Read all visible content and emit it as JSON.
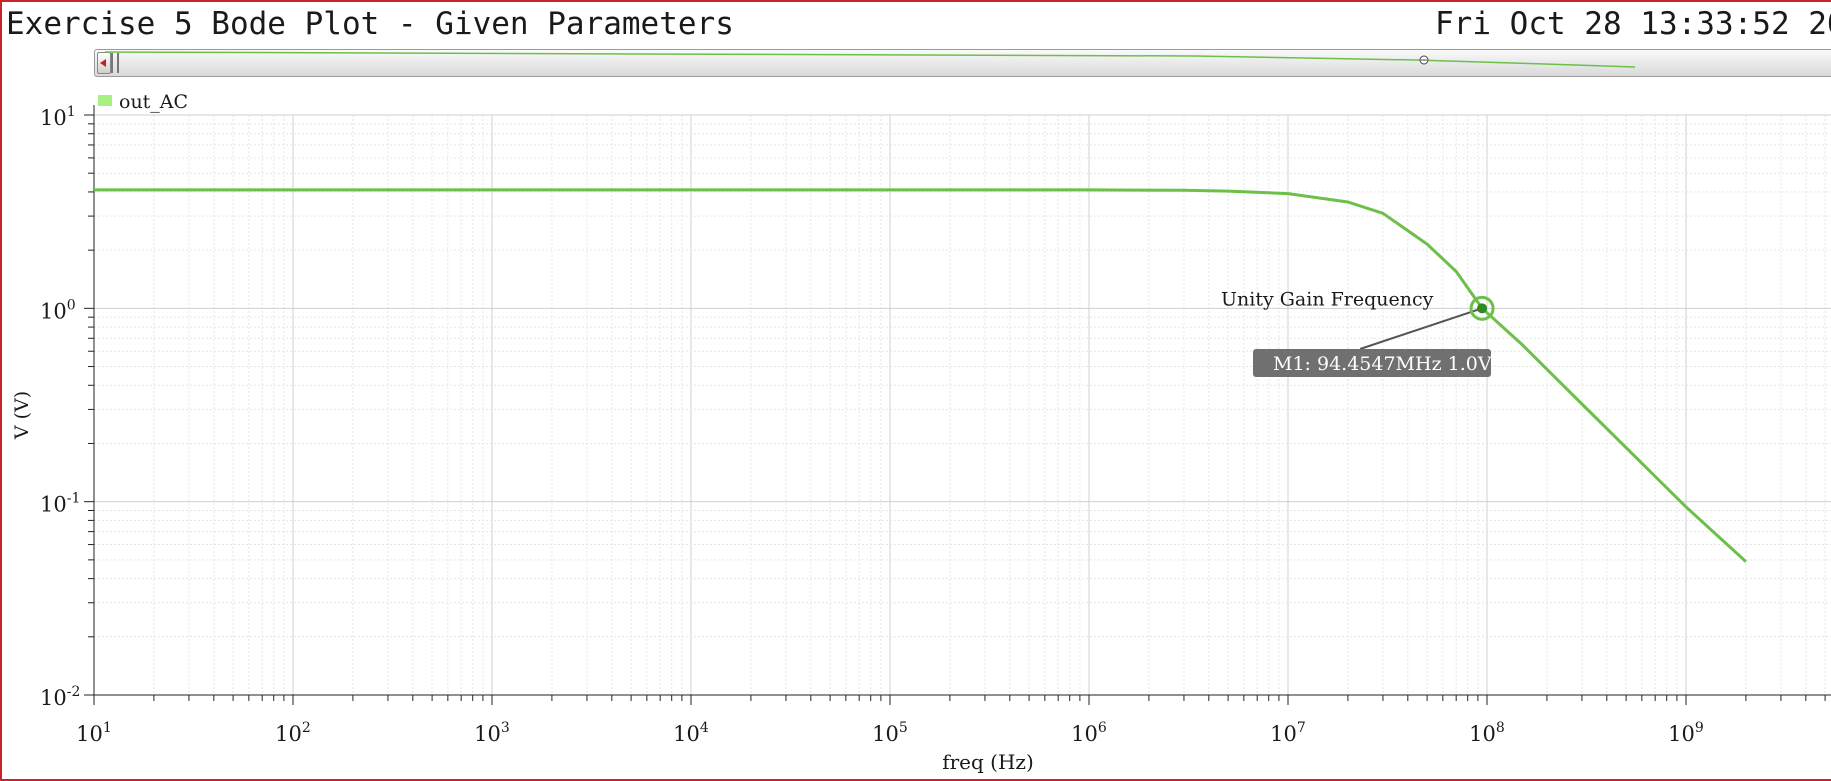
{
  "window": {
    "title": "Exercise 5 Bode Plot - Given Parameters",
    "date": "Fri Oct 28 13:33:52 20"
  },
  "colors": {
    "frame": "#c8242a",
    "trace": "#6cc04a",
    "legend_swatch": "#a8f080",
    "grid_major": "#d0d0d0",
    "grid_minor": "#e6e6e6",
    "marker_label_bg": "#707070"
  },
  "chart_data": {
    "type": "line",
    "xscale": "log",
    "yscale": "log",
    "xlabel": "freq (Hz)",
    "ylabel": "V (V)",
    "xlim": [
      10,
      4000000000
    ],
    "ylim": [
      0.01,
      10
    ],
    "grid": true,
    "legend_position": "top-left",
    "x_ticks": [
      {
        "base": "10",
        "exp": "1",
        "value": 10
      },
      {
        "base": "10",
        "exp": "2",
        "value": 100
      },
      {
        "base": "10",
        "exp": "3",
        "value": 1000
      },
      {
        "base": "10",
        "exp": "4",
        "value": 10000
      },
      {
        "base": "10",
        "exp": "5",
        "value": 100000
      },
      {
        "base": "10",
        "exp": "6",
        "value": 1000000
      },
      {
        "base": "10",
        "exp": "7",
        "value": 10000000
      },
      {
        "base": "10",
        "exp": "8",
        "value": 100000000
      },
      {
        "base": "10",
        "exp": "9",
        "value": 1000000000
      }
    ],
    "y_ticks": [
      {
        "base": "10",
        "exp": "1",
        "value": 10
      },
      {
        "base": "10",
        "exp": "0",
        "value": 1
      },
      {
        "base": "10",
        "exp": "-1",
        "value": 0.1
      },
      {
        "base": "10",
        "exp": "-2",
        "value": 0.01
      }
    ],
    "series": [
      {
        "name": "out_AC",
        "color": "#6cc04a",
        "x": [
          10,
          1000,
          100000,
          1000000,
          3000000,
          5000000,
          10000000,
          20000000,
          30000000,
          50000000,
          70000000,
          94454700,
          150000000,
          300000000,
          1000000000,
          2000000000
        ],
        "y": [
          4.1,
          4.1,
          4.1,
          4.1,
          4.08,
          4.04,
          3.92,
          3.55,
          3.1,
          2.15,
          1.55,
          1.0,
          0.65,
          0.32,
          0.094,
          0.049
        ]
      }
    ],
    "annotations": [
      {
        "text": "Unity Gain Frequency",
        "x": 94454700,
        "y": 1.0
      }
    ],
    "markers": [
      {
        "label": "M1: 94.4547MHz 1.0V",
        "x": 94454700,
        "y": 1.0
      }
    ]
  }
}
